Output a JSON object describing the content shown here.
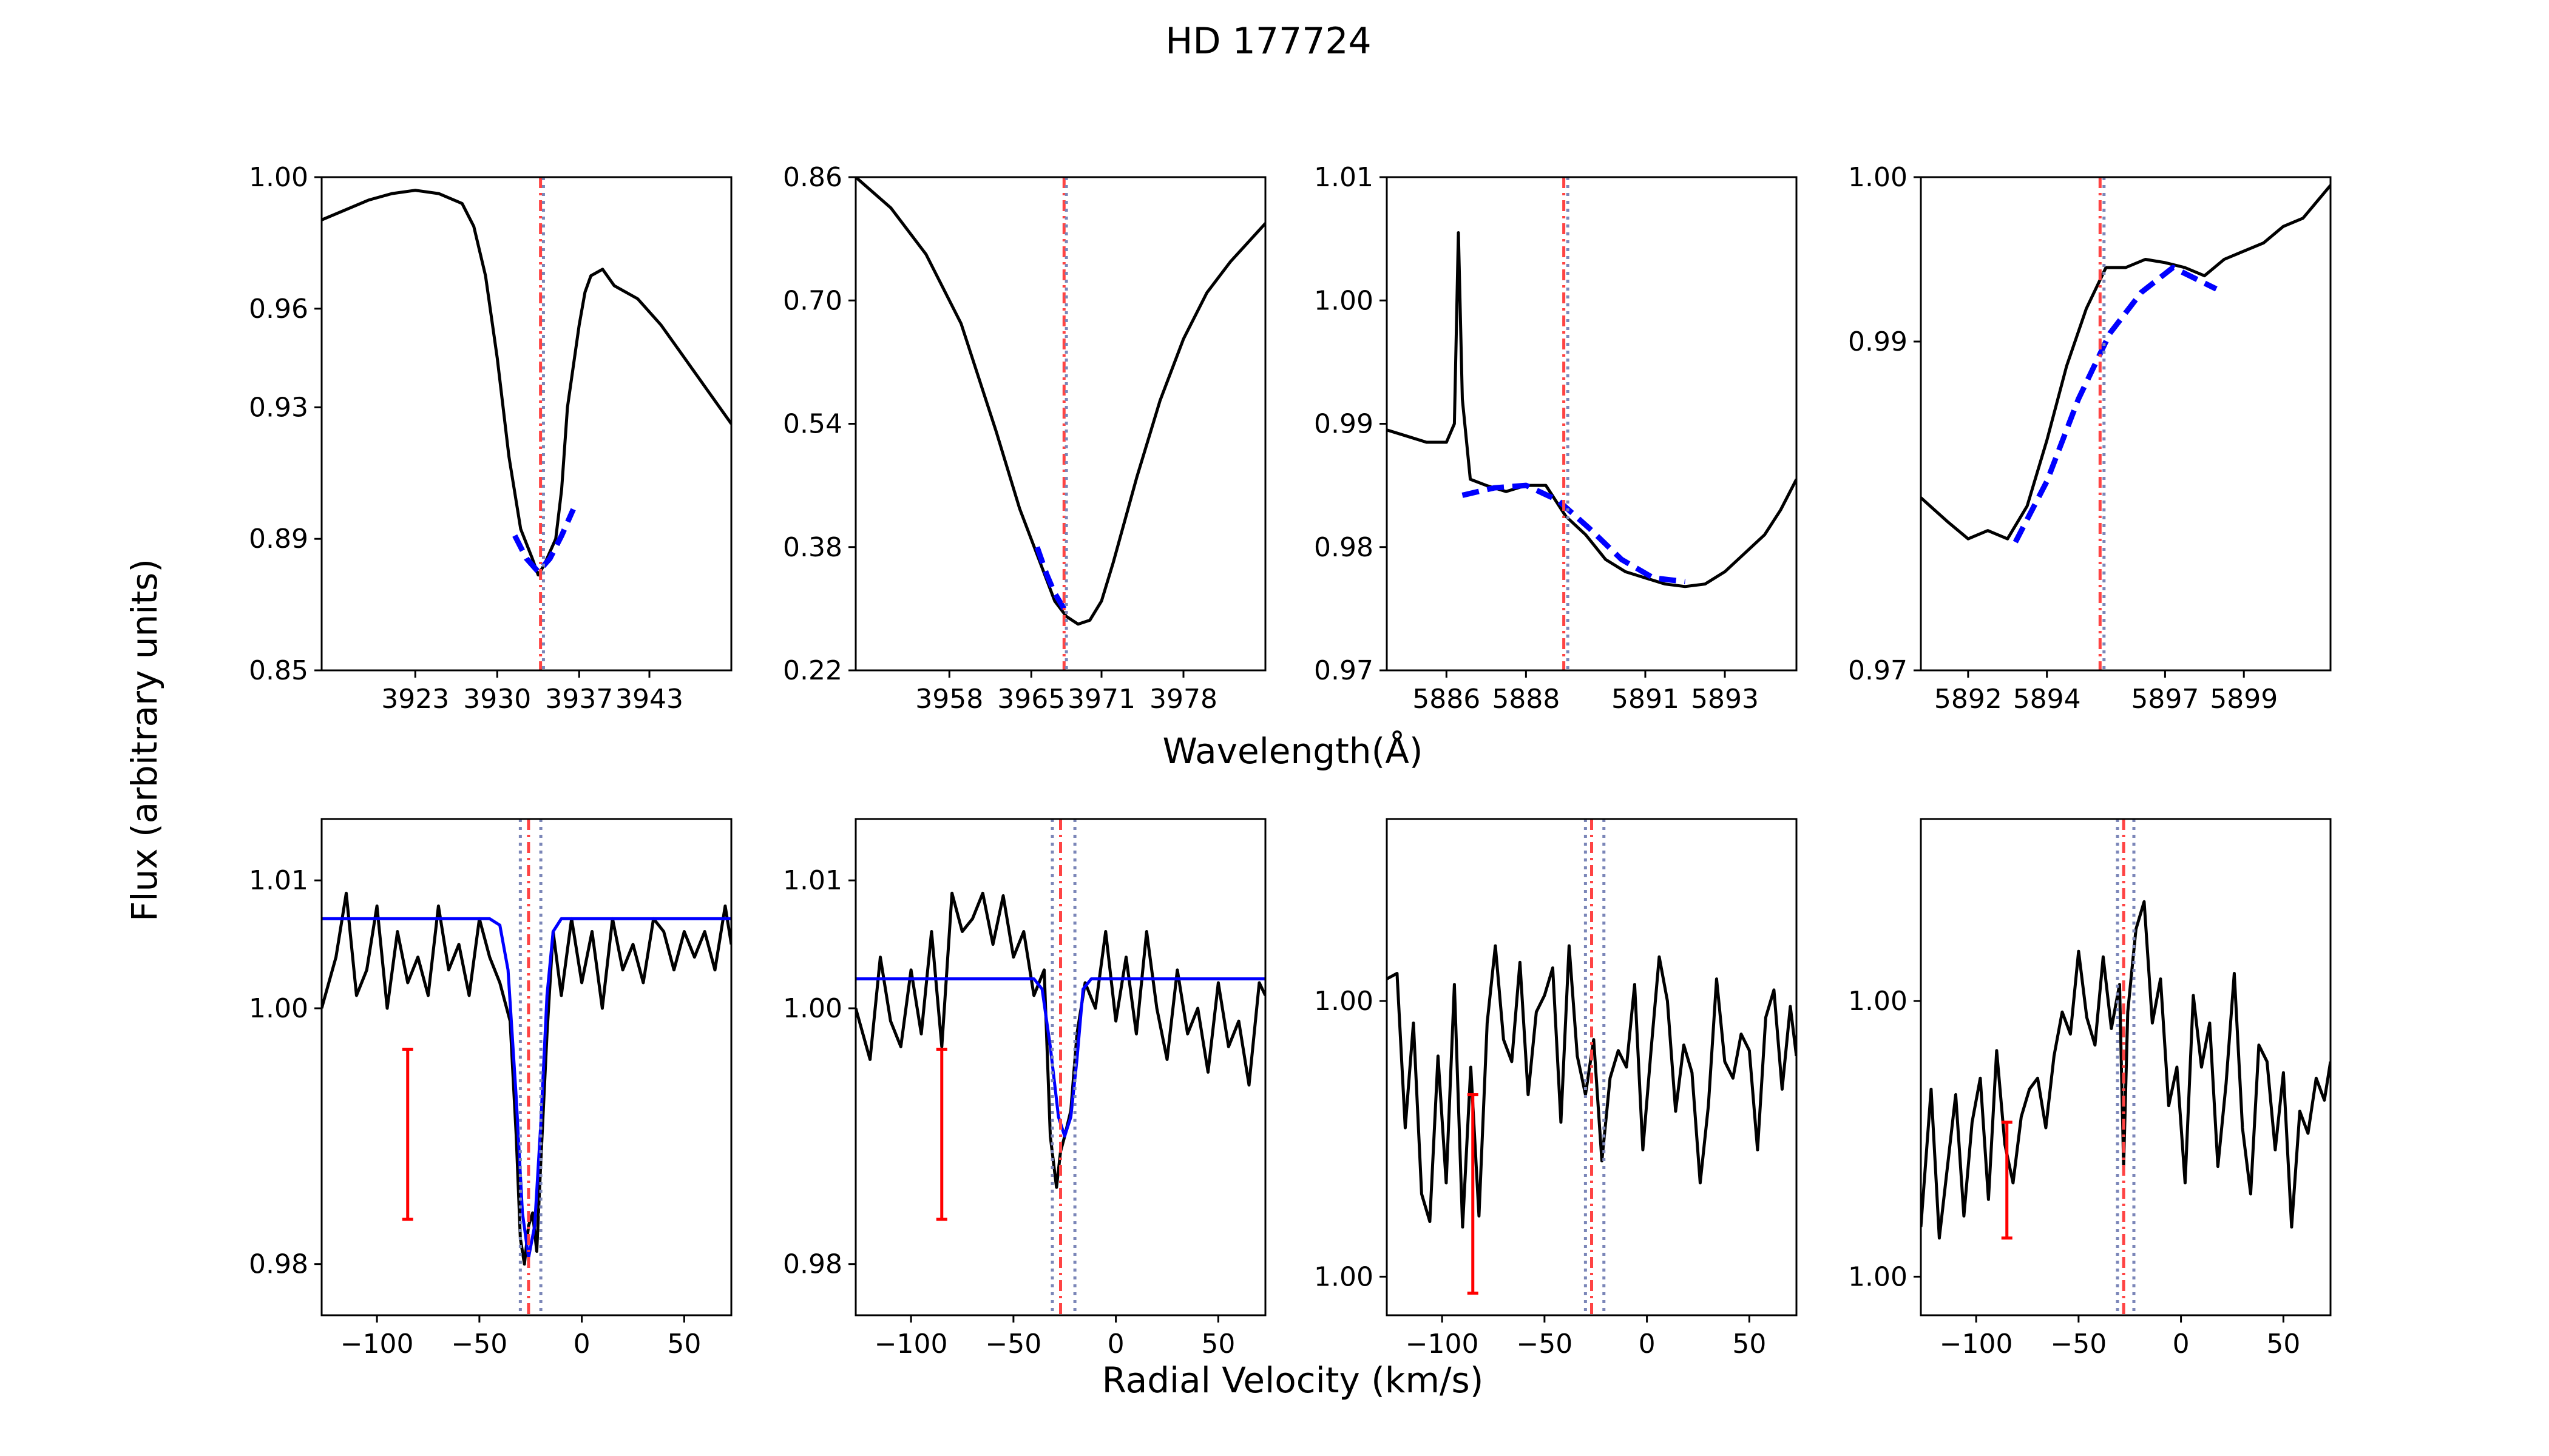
{
  "figure": {
    "title": "HD 177724",
    "top_xlabel": "Wavelength(Å)",
    "bottom_xlabel": "Radial Velocity (km/s)",
    "ylabel": "Flux (arbitrary units)"
  },
  "colors": {
    "spectrum": "#000000",
    "fit": "#0000ff",
    "marker_red": "#ff4444",
    "marker_blue": "#7b86b8",
    "errorbar": "#ff0000"
  },
  "chart_data": [
    {
      "type": "line",
      "row": "top",
      "panel": 1,
      "xlabel": "Wavelength(Å)",
      "xlim": [
        3915,
        3950
      ],
      "ylim": [
        0.85,
        1.0
      ],
      "xticks": [
        3923,
        3930,
        3937,
        3943
      ],
      "yticks": [
        0.85,
        0.89,
        0.93,
        0.96,
        1.0
      ],
      "ytick_labels": [
        "0.85",
        "0.89",
        "0.93",
        "0.96",
        "1.00"
      ],
      "spectrum": {
        "x": [
          3915,
          3917,
          3919,
          3921,
          3923,
          3925,
          3927,
          3928,
          3929,
          3930,
          3931,
          3932,
          3933,
          3933.5,
          3934,
          3935,
          3935.5,
          3936,
          3937,
          3937.5,
          3938,
          3939,
          3940,
          3942,
          3944,
          3946,
          3948,
          3950
        ],
        "y": [
          0.987,
          0.99,
          0.993,
          0.995,
          0.996,
          0.995,
          0.992,
          0.985,
          0.97,
          0.945,
          0.915,
          0.893,
          0.884,
          0.879,
          0.882,
          0.89,
          0.905,
          0.93,
          0.955,
          0.965,
          0.97,
          0.972,
          0.967,
          0.963,
          0.955,
          0.945,
          0.935,
          0.925
        ]
      },
      "fit": {
        "style": "dashed",
        "x": [
          3931.5,
          3932.5,
          3933.5,
          3934.5,
          3935.5,
          3936.5
        ],
        "y": [
          0.891,
          0.884,
          0.88,
          0.884,
          0.891,
          0.899
        ]
      },
      "markers": [
        {
          "x": 3933.7,
          "color": "red",
          "style": "dashdot"
        },
        {
          "x": 3933.95,
          "color": "blue",
          "style": "dotted"
        }
      ]
    },
    {
      "type": "line",
      "row": "top",
      "panel": 2,
      "xlabel": "Wavelength(Å)",
      "xlim": [
        3950,
        3985
      ],
      "ylim": [
        0.22,
        0.86
      ],
      "xticks": [
        3958,
        3965,
        3971,
        3978
      ],
      "yticks": [
        0.22,
        0.38,
        0.54,
        0.7,
        0.86
      ],
      "ytick_labels": [
        "0.22",
        "0.38",
        "0.54",
        "0.70",
        "0.86"
      ],
      "spectrum": {
        "x": [
          3950,
          3953,
          3956,
          3959,
          3962,
          3964,
          3966,
          3967,
          3968,
          3969,
          3970,
          3971,
          3972,
          3974,
          3976,
          3978,
          3980,
          3982,
          3985
        ],
        "y": [
          0.86,
          0.82,
          0.76,
          0.67,
          0.53,
          0.43,
          0.35,
          0.31,
          0.29,
          0.28,
          0.285,
          0.31,
          0.36,
          0.47,
          0.57,
          0.65,
          0.71,
          0.75,
          0.8
        ]
      },
      "fit": {
        "style": "dashed",
        "x": [
          3965.5,
          3966.3,
          3967.0,
          3967.8
        ],
        "y": [
          0.38,
          0.345,
          0.32,
          0.3
        ]
      },
      "markers": [
        {
          "x": 3967.8,
          "color": "red",
          "style": "dashdot"
        },
        {
          "x": 3968.0,
          "color": "blue",
          "style": "dotted"
        }
      ]
    },
    {
      "type": "line",
      "row": "top",
      "panel": 3,
      "xlabel": "Wavelength(Å)",
      "xlim": [
        5884.5,
        5894.8
      ],
      "ylim": [
        0.97,
        1.01
      ],
      "xticks": [
        5886,
        5888,
        5891,
        5893
      ],
      "yticks": [
        0.97,
        0.98,
        0.99,
        1.0,
        1.01
      ],
      "ytick_labels": [
        "0.97",
        "0.98",
        "0.99",
        "1.00",
        "1.01"
      ],
      "spectrum": {
        "x": [
          5884.5,
          5885,
          5885.5,
          5886,
          5886.2,
          5886.3,
          5886.4,
          5886.6,
          5887,
          5887.5,
          5888,
          5888.5,
          5889,
          5889.5,
          5890,
          5890.5,
          5891,
          5891.5,
          5892,
          5892.5,
          5893,
          5893.5,
          5894,
          5894.4,
          5894.8
        ],
        "y": [
          0.9895,
          0.989,
          0.9885,
          0.9885,
          0.99,
          1.0055,
          0.992,
          0.9855,
          0.985,
          0.9845,
          0.985,
          0.985,
          0.9825,
          0.981,
          0.979,
          0.978,
          0.9775,
          0.977,
          0.9768,
          0.977,
          0.978,
          0.9795,
          0.981,
          0.983,
          0.9855
        ]
      },
      "fit": {
        "style": "dashed",
        "x": [
          5886.4,
          5887.2,
          5888,
          5888.8,
          5889.6,
          5890.4,
          5891.2,
          5892
        ],
        "y": [
          0.9842,
          0.9848,
          0.985,
          0.9838,
          0.9815,
          0.979,
          0.9775,
          0.9772
        ]
      },
      "markers": [
        {
          "x": 5888.95,
          "color": "red",
          "style": "dashdot"
        },
        {
          "x": 5889.05,
          "color": "blue",
          "style": "dotted"
        }
      ]
    },
    {
      "type": "line",
      "row": "top",
      "panel": 4,
      "xlabel": "Wavelength(Å)",
      "xlim": [
        5890.8,
        5901.2
      ],
      "ylim": [
        0.97,
        1.0
      ],
      "xticks": [
        5892,
        5894,
        5897,
        5899
      ],
      "yticks": [
        0.97,
        0.99,
        1.0
      ],
      "ytick_labels": [
        "0.97",
        "0.99",
        "1.00"
      ],
      "spectrum": {
        "x": [
          5890.8,
          5891.5,
          5892,
          5892.5,
          5893,
          5893.5,
          5894,
          5894.5,
          5895,
          5895.5,
          5896,
          5896.5,
          5897,
          5897.5,
          5898,
          5898.5,
          5899,
          5899.5,
          5900,
          5900.5,
          5901.2
        ],
        "y": [
          0.9805,
          0.979,
          0.978,
          0.9785,
          0.978,
          0.98,
          0.984,
          0.9885,
          0.992,
          0.9945,
          0.9945,
          0.995,
          0.9948,
          0.9945,
          0.994,
          0.995,
          0.9955,
          0.996,
          0.997,
          0.9975,
          0.9995
        ]
      },
      "fit": {
        "style": "dashed",
        "x": [
          5893.2,
          5894,
          5894.8,
          5895.6,
          5896.4,
          5897.2,
          5898.3
        ],
        "y": [
          0.9778,
          0.9815,
          0.9865,
          0.9905,
          0.993,
          0.9945,
          0.9932
        ]
      },
      "markers": [
        {
          "x": 5895.35,
          "color": "red",
          "style": "dashdot"
        },
        {
          "x": 5895.45,
          "color": "blue",
          "style": "dotted"
        }
      ]
    },
    {
      "type": "line",
      "row": "bottom",
      "panel": 1,
      "xlabel": "Radial Velocity (km/s)",
      "xlim": [
        -127,
        73
      ],
      "ylim": [
        0.976,
        1.0148
      ],
      "xticks": [
        -100,
        -50,
        0,
        50
      ],
      "yticks": [
        0.98,
        1.0,
        1.01
      ],
      "ytick_labels": [
        "0.98",
        "1.00",
        "1.01"
      ],
      "spectrum": {
        "x": [
          -127,
          -120,
          -115,
          -110,
          -105,
          -100,
          -95,
          -90,
          -85,
          -80,
          -75,
          -70,
          -65,
          -60,
          -55,
          -50,
          -45,
          -40,
          -35,
          -32,
          -30,
          -28,
          -26,
          -24,
          -22,
          -20,
          -17,
          -14,
          -10,
          -5,
          0,
          5,
          10,
          15,
          20,
          25,
          30,
          35,
          40,
          45,
          50,
          55,
          60,
          65,
          70,
          73
        ],
        "y": [
          1.0,
          1.004,
          1.009,
          1.001,
          1.003,
          1.008,
          1.0,
          1.006,
          1.002,
          1.004,
          1.001,
          1.008,
          1.003,
          1.005,
          1.001,
          1.007,
          1.004,
          1.002,
          0.999,
          0.99,
          0.982,
          0.98,
          0.983,
          0.984,
          0.981,
          0.988,
          0.998,
          1.006,
          1.001,
          1.007,
          1.002,
          1.006,
          1.0,
          1.007,
          1.003,
          1.005,
          1.002,
          1.007,
          1.006,
          1.003,
          1.006,
          1.004,
          1.006,
          1.003,
          1.008,
          1.005
        ]
      },
      "fit": {
        "style": "solid",
        "x": [
          -127,
          -45,
          -40,
          -36,
          -32,
          -29,
          -26,
          -23,
          -20,
          -17,
          -14,
          -10,
          73
        ],
        "y": [
          1.007,
          1.007,
          1.0065,
          1.003,
          0.993,
          0.984,
          0.9805,
          0.983,
          0.991,
          1.001,
          1.006,
          1.007,
          1.007
        ]
      },
      "errorbar": {
        "x": -85,
        "y_low": 0.9835,
        "y_high": 0.9968
      },
      "markers": [
        {
          "x": -30,
          "color": "blue",
          "style": "dotted"
        },
        {
          "x": -26,
          "color": "red",
          "style": "dashdot"
        },
        {
          "x": -20,
          "color": "blue",
          "style": "dotted"
        }
      ]
    },
    {
      "type": "line",
      "row": "bottom",
      "panel": 2,
      "xlabel": "Radial Velocity (km/s)",
      "xlim": [
        -127,
        73
      ],
      "ylim": [
        0.976,
        1.0148
      ],
      "xticks": [
        -100,
        -50,
        0,
        50
      ],
      "yticks": [
        0.98,
        1.0,
        1.01
      ],
      "ytick_labels": [
        "0.98",
        "1.00",
        "1.01"
      ],
      "spectrum": {
        "x": [
          -127,
          -120,
          -115,
          -110,
          -105,
          -100,
          -95,
          -90,
          -85,
          -80,
          -75,
          -70,
          -65,
          -60,
          -55,
          -50,
          -45,
          -40,
          -35,
          -32,
          -29,
          -27,
          -25,
          -22,
          -19,
          -15,
          -10,
          -5,
          0,
          5,
          10,
          15,
          20,
          25,
          30,
          35,
          40,
          45,
          50,
          55,
          60,
          65,
          70,
          73
        ],
        "y": [
          1.0,
          0.996,
          1.004,
          0.999,
          0.997,
          1.003,
          0.998,
          1.006,
          0.997,
          1.009,
          1.006,
          1.007,
          1.009,
          1.005,
          1.0088,
          1.004,
          1.006,
          1.001,
          1.003,
          0.99,
          0.986,
          0.9888,
          0.99,
          0.992,
          0.998,
          1.002,
          1.0,
          1.006,
          0.999,
          1.004,
          0.998,
          1.006,
          1.0,
          0.996,
          1.003,
          0.998,
          1.0,
          0.995,
          1.002,
          0.997,
          0.999,
          0.994,
          1.002,
          1.001
        ]
      },
      "fit": {
        "style": "solid",
        "x": [
          -127,
          -40,
          -36,
          -32,
          -28,
          -25,
          -22,
          -19,
          -16,
          -12,
          73
        ],
        "y": [
          1.0023,
          1.0023,
          1.0015,
          0.997,
          0.9915,
          0.99,
          0.9915,
          0.996,
          1.0015,
          1.0023,
          1.0023
        ]
      },
      "errorbar": {
        "x": -85,
        "y_low": 0.9835,
        "y_high": 0.9968
      },
      "markers": [
        {
          "x": -31,
          "color": "blue",
          "style": "dotted"
        },
        {
          "x": -27,
          "color": "red",
          "style": "dashdot"
        },
        {
          "x": -20,
          "color": "blue",
          "style": "dotted"
        }
      ]
    },
    {
      "type": "line",
      "row": "bottom",
      "panel": 3,
      "xlabel": "Radial Velocity (km/s)",
      "xlim": [
        -127,
        73
      ],
      "ylim": [
        0.9968,
        1.0058
      ],
      "xticks": [
        -100,
        -50,
        0,
        50
      ],
      "yticks": [
        0.9975,
        1.0025
      ],
      "ytick_labels": [
        "1.00",
        "1.00"
      ],
      "spectrum": {
        "x": [
          -127,
          -122,
          -118,
          -114,
          -110,
          -106,
          -102,
          -98,
          -94,
          -90,
          -86,
          -82,
          -78,
          -74,
          -70,
          -66,
          -62,
          -58,
          -54,
          -50,
          -46,
          -42,
          -38,
          -34,
          -30,
          -26,
          -22,
          -18,
          -14,
          -10,
          -6,
          -2,
          2,
          6,
          10,
          14,
          18,
          22,
          26,
          30,
          34,
          38,
          42,
          46,
          50,
          54,
          58,
          62,
          66,
          70,
          73
        ],
        "y": [
          1.0029,
          1.003,
          1.0002,
          1.0021,
          0.999,
          0.9985,
          1.0015,
          0.9992,
          1.0028,
          0.9984,
          1.0013,
          0.9986,
          1.0021,
          1.0035,
          1.0018,
          1.0014,
          1.0032,
          1.0008,
          1.0023,
          1.0026,
          1.0031,
          1.0003,
          1.0035,
          1.0015,
          1.0008,
          1.0018,
          0.9996,
          1.0011,
          1.0016,
          1.0013,
          1.0028,
          0.9998,
          1.0016,
          1.0033,
          1.0025,
          1.0005,
          1.0017,
          1.0012,
          0.9992,
          1.0006,
          1.0029,
          1.0014,
          1.0011,
          1.0019,
          1.0016,
          0.9998,
          1.0022,
          1.0027,
          1.0009,
          1.0024,
          1.0015
        ]
      },
      "errorbar": {
        "x": -85,
        "y_low": 0.9972,
        "y_high": 1.0008
      },
      "markers": [
        {
          "x": -30,
          "color": "blue",
          "style": "dotted"
        },
        {
          "x": -27,
          "color": "red",
          "style": "dashdot"
        },
        {
          "x": -21,
          "color": "blue",
          "style": "dotted"
        }
      ]
    },
    {
      "type": "line",
      "row": "bottom",
      "panel": 4,
      "xlabel": "Radial Velocity (km/s)",
      "xlim": [
        -127,
        73
      ],
      "ylim": [
        0.9968,
        1.0058
      ],
      "xticks": [
        -100,
        -50,
        0,
        50
      ],
      "yticks": [
        0.9975,
        1.0025
      ],
      "ytick_labels": [
        "1.00",
        "1.00"
      ],
      "spectrum": {
        "x": [
          -127,
          -122,
          -118,
          -114,
          -110,
          -106,
          -102,
          -98,
          -94,
          -90,
          -86,
          -82,
          -78,
          -74,
          -70,
          -66,
          -62,
          -58,
          -54,
          -50,
          -46,
          -42,
          -38,
          -34,
          -30,
          -28,
          -26,
          -22,
          -18,
          -14,
          -10,
          -6,
          -2,
          2,
          6,
          10,
          14,
          18,
          22,
          26,
          30,
          34,
          38,
          42,
          46,
          50,
          54,
          58,
          62,
          66,
          70,
          73
        ],
        "y": [
          0.9984,
          1.0009,
          0.9982,
          0.9995,
          1.0008,
          0.9986,
          1.0003,
          1.0011,
          0.9989,
          1.0016,
          0.9999,
          0.9992,
          1.0004,
          1.0009,
          1.0011,
          1.0002,
          1.0015,
          1.0023,
          1.0019,
          1.0034,
          1.0022,
          1.0017,
          1.0033,
          1.002,
          1.0028,
          0.9995,
          1.0023,
          1.0038,
          1.0043,
          1.0021,
          1.0029,
          1.0006,
          1.0013,
          0.9992,
          1.0026,
          1.0013,
          1.0021,
          0.9995,
          1.001,
          1.003,
          1.0002,
          0.999,
          1.0017,
          1.0014,
          0.9998,
          1.0012,
          0.9984,
          1.0005,
          1.0001,
          1.0011,
          1.0007,
          1.0014
        ]
      },
      "errorbar": {
        "x": -85,
        "y_low": 0.9982,
        "y_high": 1.0003
      },
      "markers": [
        {
          "x": -31,
          "color": "blue",
          "style": "dotted"
        },
        {
          "x": -28,
          "color": "red",
          "style": "dashdot"
        },
        {
          "x": -23,
          "color": "blue",
          "style": "dotted"
        }
      ]
    }
  ]
}
